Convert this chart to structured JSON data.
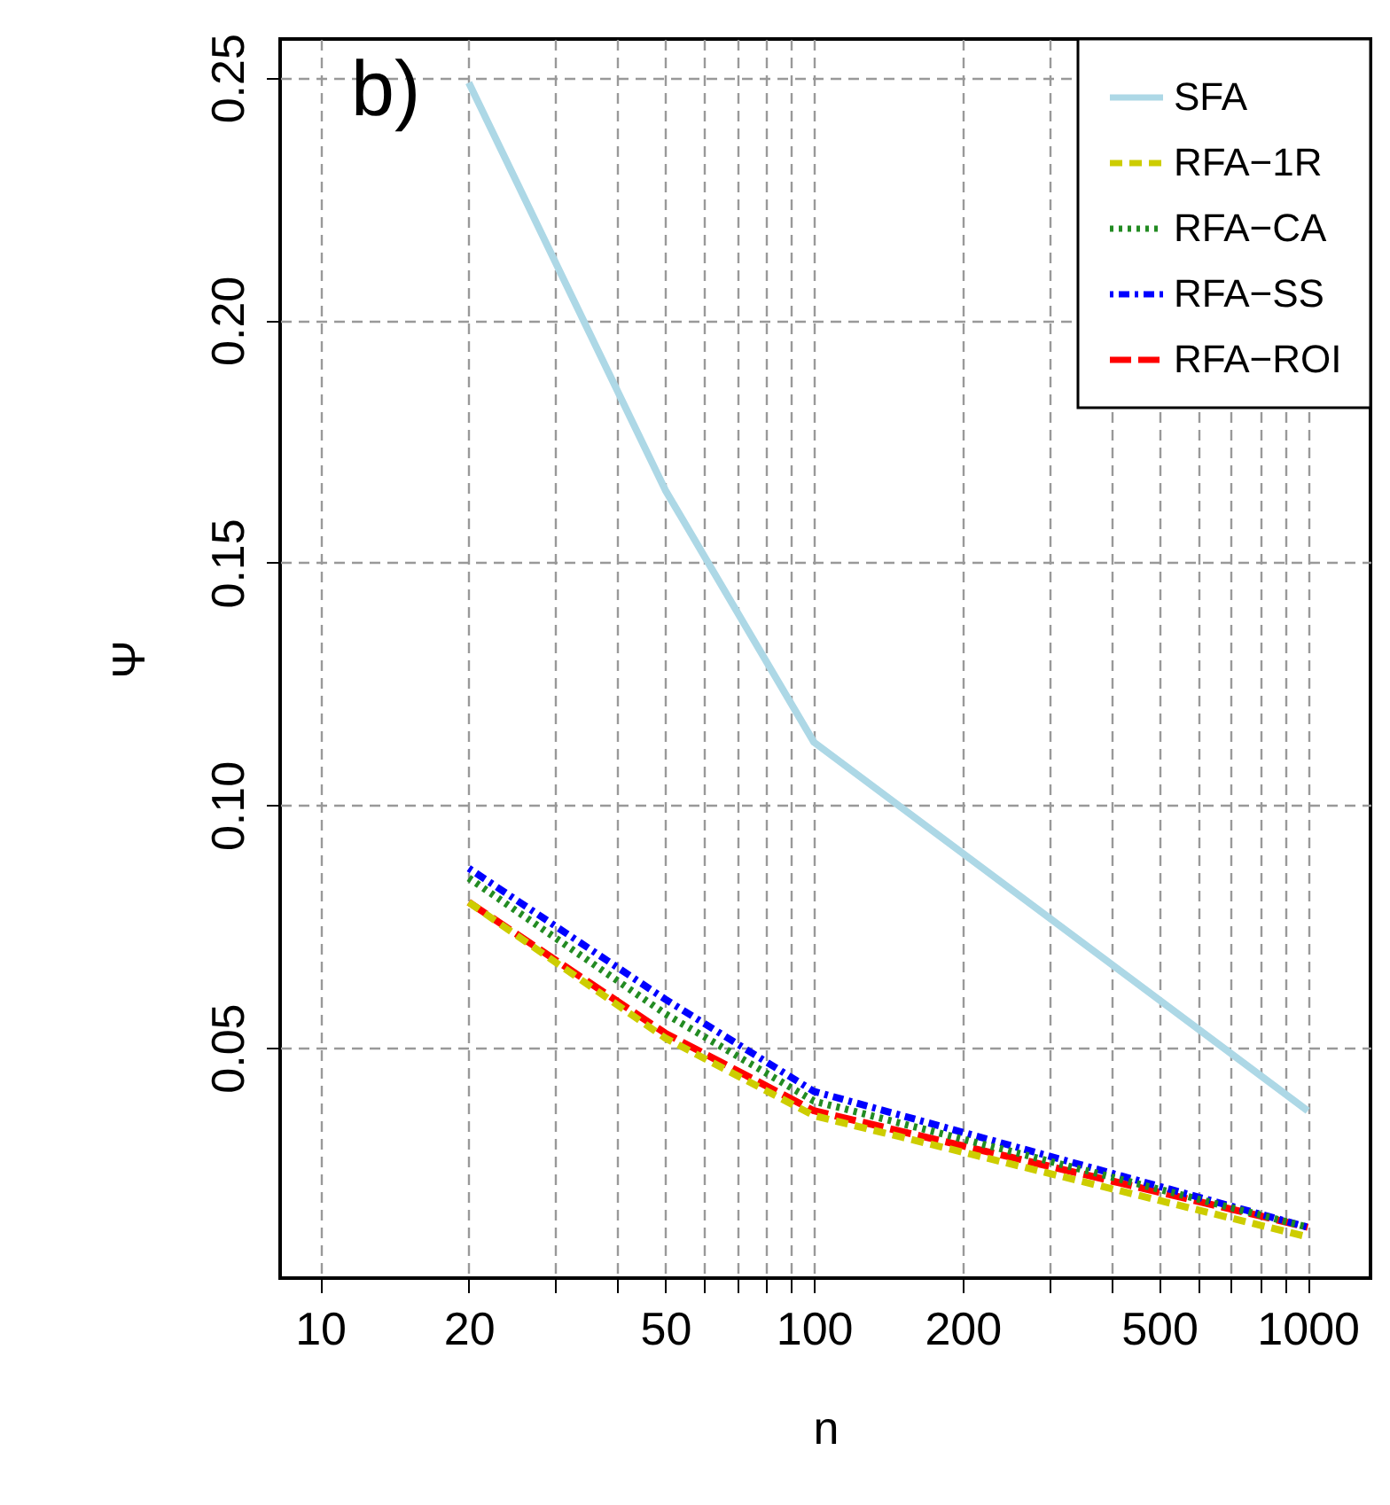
{
  "chart_data": {
    "type": "line",
    "xlabel": "n",
    "ylabel": "Ψ",
    "log": "x",
    "grid": true,
    "legend": "top right",
    "annotations": [
      "b)"
    ],
    "xlim": [
      8.3,
      1340
    ],
    "ylim": [
      0.0025,
      0.258
    ],
    "xticks": [
      10,
      20,
      {
        "value": 30,
        "label": null
      },
      {
        "value": 40,
        "label": null
      },
      50,
      {
        "value": 60,
        "label": null
      },
      {
        "value": 70,
        "label": null
      },
      {
        "value": 80,
        "label": null
      },
      {
        "value": 90,
        "label": null
      },
      100,
      200,
      {
        "value": 300,
        "label": null
      },
      {
        "value": 400,
        "label": null
      },
      500,
      {
        "value": 600,
        "label": null
      },
      {
        "value": 700,
        "label": null
      },
      {
        "value": 800,
        "label": null
      },
      {
        "value": 900,
        "label": null
      },
      1000
    ],
    "yticks": [
      0.05,
      {
        "value": 0.1,
        "label": "0.10"
      },
      0.15,
      {
        "value": 0.2,
        "label": "0.20"
      },
      0.25
    ],
    "x": [
      20,
      50,
      100,
      1000
    ],
    "series": [
      {
        "name": "SFA",
        "color": "#add8e6",
        "line_style": "solid",
        "values": [
          0.249,
          0.165,
          0.113,
          0.037
        ]
      },
      {
        "name": "RFA−1R",
        "color": "#cdcd00",
        "line_style": "dashed",
        "values": [
          0.08,
          0.052,
          0.036,
          0.011
        ]
      },
      {
        "name": "RFA−CA",
        "color": "#228b22",
        "line_style": "dotted",
        "values": [
          0.085,
          0.057,
          0.039,
          0.013
        ]
      },
      {
        "name": "RFA−SS",
        "color": "#0000ff",
        "line_style": "dashdot",
        "values": [
          0.087,
          0.06,
          0.041,
          0.013
        ]
      },
      {
        "name": "RFA−ROI",
        "color": "#ff0000",
        "line_style": "longdash",
        "values": [
          0.08,
          0.053,
          0.037,
          0.013
        ]
      }
    ]
  }
}
